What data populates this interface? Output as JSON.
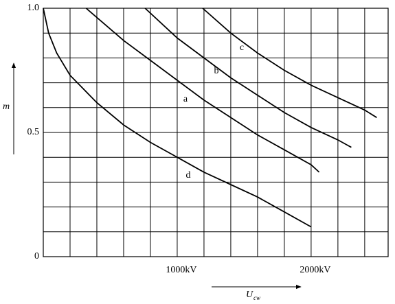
{
  "chart_data": {
    "type": "line",
    "xlabel": "U",
    "xlabel_sub": "cw",
    "ylabel": "m",
    "xlim": [
      0,
      2575
    ],
    "ylim": [
      0,
      1.0
    ],
    "xticks": [
      {
        "value": 1000,
        "label": "1000kV"
      },
      {
        "value": 2000,
        "label": "2000kV"
      }
    ],
    "yticks": [
      0,
      0.5,
      {
        "value": 1.0,
        "label": "1.0"
      }
    ],
    "x_grid": [
      200,
      400,
      600,
      800,
      1000,
      1200,
      1400,
      1600,
      1800,
      2000,
      2200,
      2400
    ],
    "y_grid": [
      0.1,
      0.2,
      0.3,
      0.4,
      0.5,
      0.6,
      0.7,
      0.8,
      0.9
    ],
    "series": [
      {
        "name": "a",
        "color": "#000000",
        "x": [
          320,
          600,
          800,
          1000,
          1200,
          1400,
          1600,
          1800,
          2000,
          2060
        ],
        "values": [
          1.0,
          0.87,
          0.79,
          0.71,
          0.63,
          0.56,
          0.49,
          0.43,
          0.37,
          0.34
        ]
      },
      {
        "name": "b",
        "color": "#000000",
        "x": [
          760,
          1000,
          1200,
          1400,
          1600,
          1800,
          2000,
          2200,
          2300
        ],
        "values": [
          1.0,
          0.88,
          0.8,
          0.72,
          0.65,
          0.58,
          0.52,
          0.47,
          0.44
        ]
      },
      {
        "name": "c",
        "color": "#000000",
        "x": [
          1190,
          1400,
          1600,
          1800,
          2000,
          2200,
          2400,
          2490
        ],
        "values": [
          1.0,
          0.9,
          0.82,
          0.75,
          0.69,
          0.64,
          0.59,
          0.56
        ]
      },
      {
        "name": "d",
        "color": "#000000",
        "x": [
          0,
          40,
          100,
          200,
          400,
          600,
          800,
          1000,
          1200,
          1400,
          1600,
          1800,
          2000
        ],
        "values": [
          1.0,
          0.9,
          0.82,
          0.73,
          0.62,
          0.53,
          0.46,
          0.4,
          0.34,
          0.29,
          0.24,
          0.18,
          0.12
        ]
      }
    ]
  }
}
